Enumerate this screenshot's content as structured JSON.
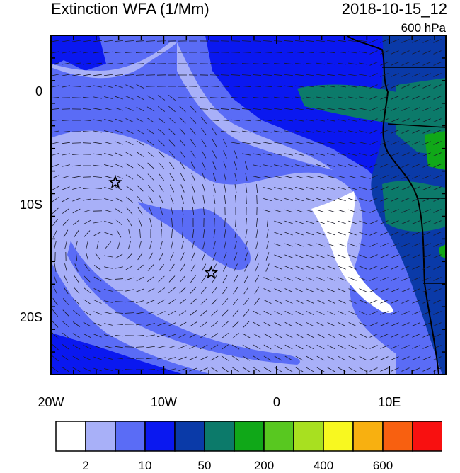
{
  "title": "Extinction WFA (1/Mm)",
  "timestamp": "2018-10-15_12",
  "level": "600 hPa",
  "axes": {
    "lon_labels": [
      "20W",
      "10W",
      "0",
      "10E"
    ],
    "lon_values": [
      -20,
      -10,
      0,
      10
    ],
    "lat_labels": [
      "0",
      "10S",
      "20S"
    ],
    "lat_values": [
      0,
      -10,
      -20
    ],
    "lon_range": [
      -20,
      15
    ],
    "lat_range": [
      -25,
      5
    ]
  },
  "colorbar": {
    "colors": [
      "#ffffff",
      "#a8b0f8",
      "#5a6cf6",
      "#0a18f0",
      "#0a3aa8",
      "#0c7a6a",
      "#10a818",
      "#58c820",
      "#a8e020",
      "#f8f820",
      "#f8b010",
      "#f86010",
      "#f81010"
    ],
    "labels": [
      "2",
      "10",
      "50",
      "200",
      "400",
      "600"
    ]
  },
  "markers": [
    {
      "name": "star",
      "lon": -14.3,
      "lat": -8.0
    },
    {
      "name": "star",
      "lon": -5.8,
      "lat": -16.0
    }
  ],
  "map_colors": {
    "ocean_deep": "#0a18f0",
    "ocean_mid": "#5a6cf6",
    "plume_light": "#a8b0f8",
    "clean": "#ffffff",
    "land_blue": "#0a3aa8",
    "land_teal": "#0c7a6a",
    "land_green": "#10a818"
  }
}
